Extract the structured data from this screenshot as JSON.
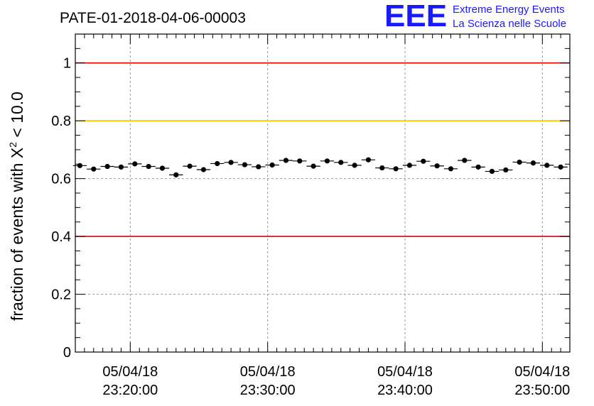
{
  "chart_data": {
    "type": "scatter",
    "title": "PATE-01-2018-04-06-00003",
    "ylabel": "fraction of events with X² < 10.0",
    "ylabel_parts": {
      "prefix": "fraction of events with X",
      "sup": "2",
      "suffix": " < 10.0"
    },
    "xlabel": "",
    "ylim": [
      0,
      1.1
    ],
    "xlim": [
      0,
      54
    ],
    "y_ticks": [
      {
        "value": 0,
        "label": "0"
      },
      {
        "value": 0.2,
        "label": "0.2"
      },
      {
        "value": 0.4,
        "label": "0.4"
      },
      {
        "value": 0.6,
        "label": "0.6"
      },
      {
        "value": 0.8,
        "label": "0.8"
      },
      {
        "value": 1,
        "label": "1"
      }
    ],
    "x_ticks": [
      {
        "value": 6,
        "date": "05/04/18",
        "time": "23:20:00"
      },
      {
        "value": 21,
        "date": "05/04/18",
        "time": "23:30:00"
      },
      {
        "value": 36,
        "date": "05/04/18",
        "time": "23:40:00"
      },
      {
        "value": 51,
        "date": "05/04/18",
        "time": "23:50:00"
      }
    ],
    "grid": true,
    "reference_lines": [
      {
        "y": 1.0,
        "color": "#e60000"
      },
      {
        "y": 0.8,
        "color": "#ffc000"
      },
      {
        "y": 0.4,
        "color": "#e60000"
      }
    ],
    "points": [
      {
        "x": 0.5,
        "y": 0.645
      },
      {
        "x": 2.0,
        "y": 0.633
      },
      {
        "x": 3.5,
        "y": 0.642
      },
      {
        "x": 5.0,
        "y": 0.64
      },
      {
        "x": 6.5,
        "y": 0.651
      },
      {
        "x": 8.0,
        "y": 0.642
      },
      {
        "x": 9.5,
        "y": 0.636
      },
      {
        "x": 11.0,
        "y": 0.613
      },
      {
        "x": 12.5,
        "y": 0.643
      },
      {
        "x": 14.0,
        "y": 0.631
      },
      {
        "x": 15.5,
        "y": 0.652
      },
      {
        "x": 17.0,
        "y": 0.656
      },
      {
        "x": 18.5,
        "y": 0.648
      },
      {
        "x": 20.0,
        "y": 0.641
      },
      {
        "x": 21.5,
        "y": 0.647
      },
      {
        "x": 23.0,
        "y": 0.663
      },
      {
        "x": 24.5,
        "y": 0.661
      },
      {
        "x": 26.0,
        "y": 0.643
      },
      {
        "x": 27.5,
        "y": 0.661
      },
      {
        "x": 29.0,
        "y": 0.656
      },
      {
        "x": 30.5,
        "y": 0.646
      },
      {
        "x": 32.0,
        "y": 0.665
      },
      {
        "x": 33.5,
        "y": 0.637
      },
      {
        "x": 35.0,
        "y": 0.634
      },
      {
        "x": 36.5,
        "y": 0.646
      },
      {
        "x": 38.0,
        "y": 0.66
      },
      {
        "x": 39.5,
        "y": 0.644
      },
      {
        "x": 41.0,
        "y": 0.634
      },
      {
        "x": 42.5,
        "y": 0.663
      },
      {
        "x": 44.0,
        "y": 0.64
      },
      {
        "x": 45.5,
        "y": 0.625
      },
      {
        "x": 47.0,
        "y": 0.63
      },
      {
        "x": 48.5,
        "y": 0.657
      },
      {
        "x": 50.0,
        "y": 0.654
      },
      {
        "x": 51.5,
        "y": 0.646
      },
      {
        "x": 53.0,
        "y": 0.64
      }
    ],
    "x_bin_width": 1.5,
    "y_error": 0.007
  },
  "logo": {
    "mark": "EEE",
    "line1": "Extreme Energy Events",
    "line2": "La Scienza nelle Scuole",
    "color": "#1a1aff"
  }
}
